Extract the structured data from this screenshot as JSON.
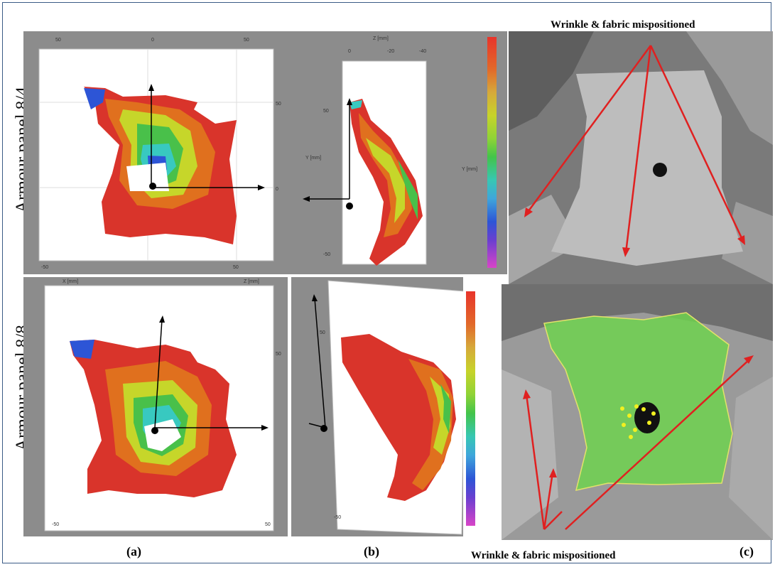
{
  "figure": {
    "row_labels": [
      "Armour panel 8/4",
      "Armour panel 8/8"
    ],
    "captions": [
      "(a)",
      "(b)",
      "(c)"
    ],
    "annotation_top": "Wrinkle & fabric mispositioned",
    "annotation_bottom": "Wrinkle & fabric mispositioned"
  },
  "colors": {
    "frame_border": "#3b5b86",
    "arrow": "#e02020",
    "contour_red": "#d9342b",
    "contour_orange": "#e0701e",
    "contour_yellow": "#c6d62a",
    "contour_green": "#49c04a",
    "contour_cyan": "#38c9c0",
    "contour_blue": "#2d55d6",
    "overlay_green": "#6fd24f"
  },
  "icons": [
    "axis-arrow-icon",
    "colorbar-icon",
    "red-arrow-icon"
  ]
}
